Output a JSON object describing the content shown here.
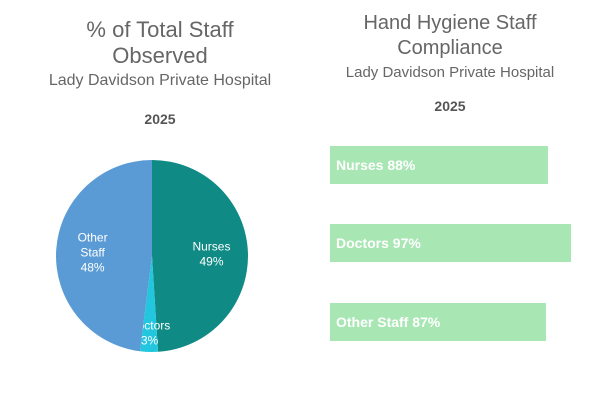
{
  "left_panel": {
    "title": "% of Total Staff Observed",
    "subtitle": "Lady Davidson Private Hospital",
    "year": "2025"
  },
  "right_panel": {
    "title": "Hand Hygiene Staff Compliance",
    "subtitle": "Lady Davidson Private Hospital",
    "year": "2025"
  },
  "chart_data": [
    {
      "type": "pie",
      "title": "% of Total Staff Observed",
      "categories": [
        "Nurses",
        "Doctors",
        "Other Staff"
      ],
      "values": [
        49,
        3,
        48
      ],
      "labels": [
        {
          "name": "Nurses",
          "pct": "49%"
        },
        {
          "name": "Doctors",
          "pct": "3%"
        },
        {
          "name": "Other Staff",
          "pct": "48%"
        }
      ],
      "colors": [
        "#0f8a84",
        "#22c6de",
        "#5b9bd5"
      ]
    },
    {
      "type": "bar",
      "title": "Hand Hygiene Staff Compliance",
      "categories": [
        "Nurses",
        "Doctors",
        "Other Staff"
      ],
      "values": [
        88,
        97,
        87
      ],
      "labels": [
        "Nurses 88%",
        "Doctors 97%",
        "Other Staff 87%"
      ],
      "color": "#a8e6b4",
      "xlim": [
        0,
        100
      ]
    }
  ]
}
